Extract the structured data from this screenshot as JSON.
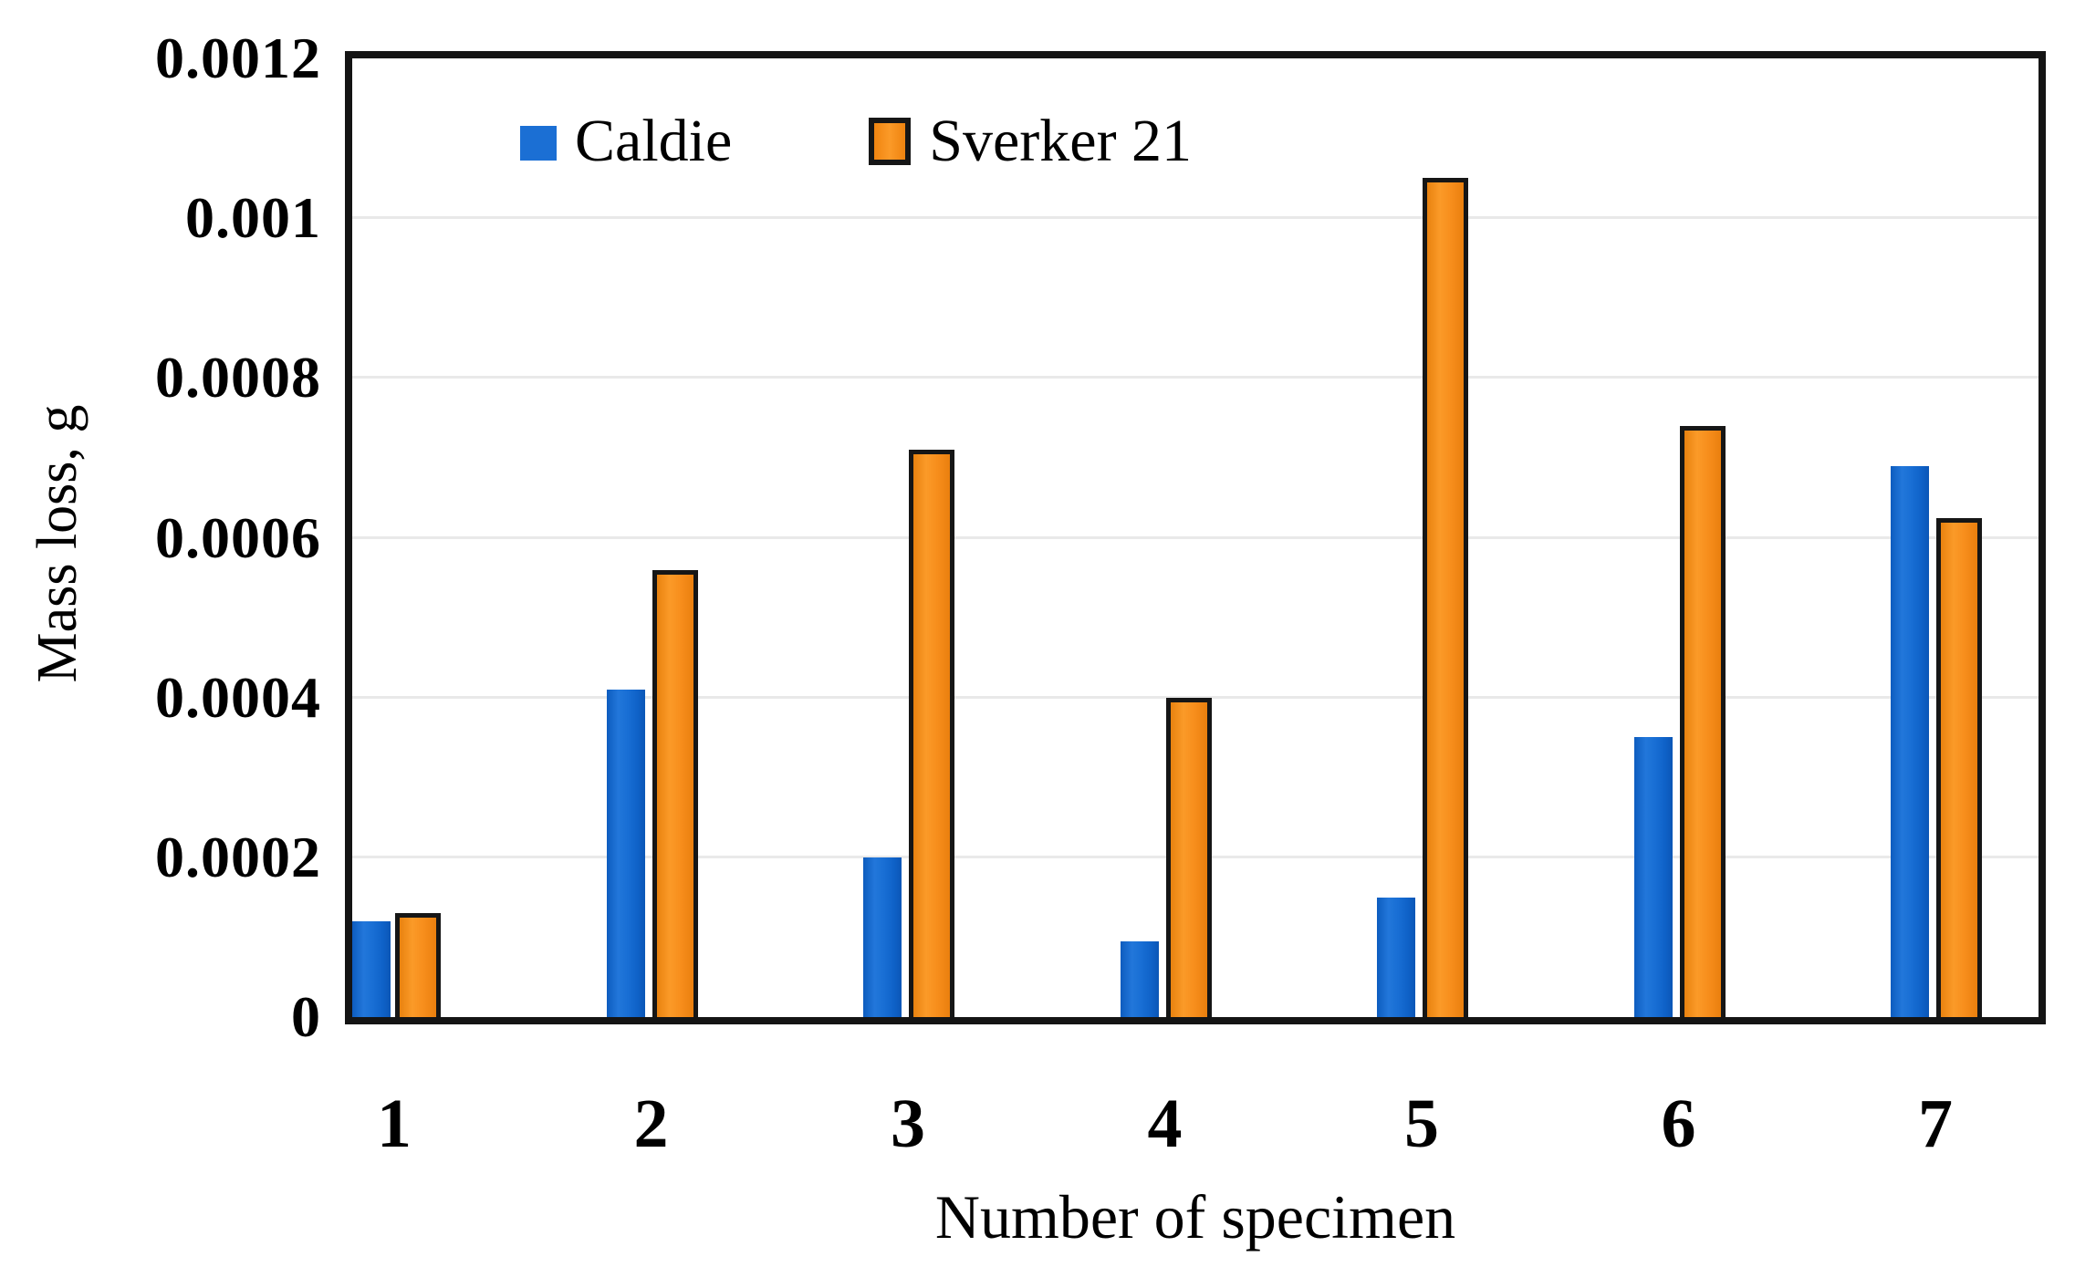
{
  "figure": {
    "y_axis_title": "Mass loss, g",
    "x_axis_title": "Number of specimen"
  },
  "chart_data": {
    "type": "bar",
    "title": "",
    "xlabel": "Number of specimen",
    "ylabel": "Mass loss, g",
    "categories": [
      "1",
      "2",
      "3",
      "4",
      "5",
      "6",
      "7"
    ],
    "series": [
      {
        "name": "Caldie",
        "color": "#1b6fd4",
        "values": [
          0.00012,
          0.00041,
          0.0002,
          9.5e-05,
          0.00015,
          0.00035,
          0.00069
        ]
      },
      {
        "name": "Sverker 21",
        "color": "#f68c1c",
        "values": [
          0.00013,
          0.00056,
          0.00071,
          0.0004,
          0.00105,
          0.00074,
          0.000625
        ]
      }
    ],
    "ylim": [
      0,
      0.0012
    ],
    "y_ticks": [
      "0",
      "0.0002",
      "0.0004",
      "0.0006",
      "0.0008",
      "0.001",
      "0.0012"
    ],
    "grid": true,
    "legend_position": "top-inside",
    "bar_outline": {
      "Caldie": "none",
      "Sverker 21": "black"
    }
  }
}
